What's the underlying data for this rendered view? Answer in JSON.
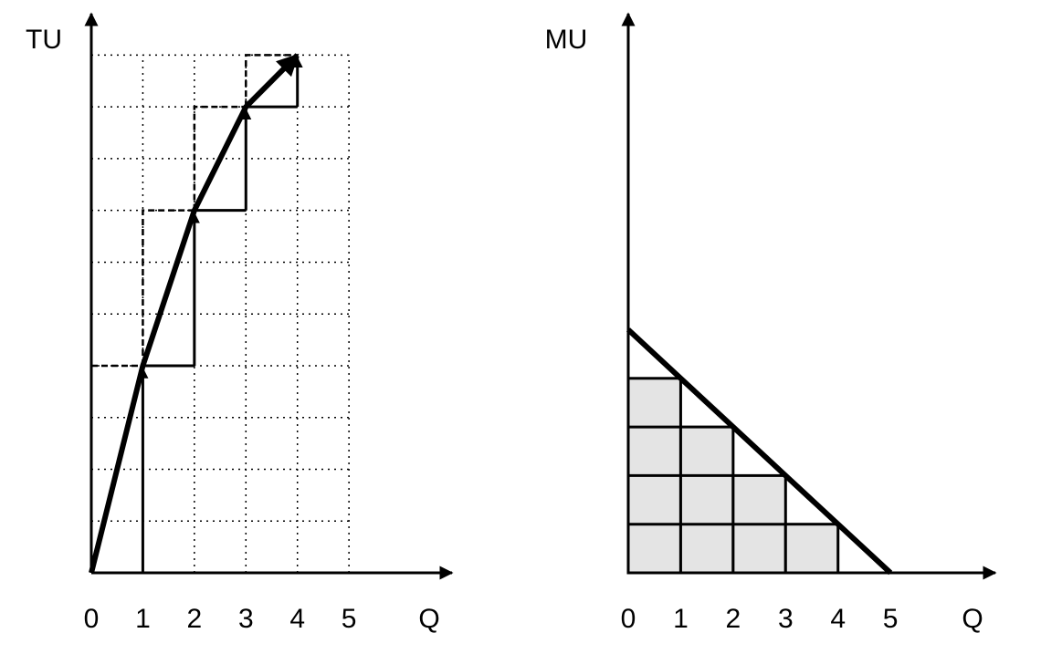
{
  "chart_data": [
    {
      "type": "line",
      "ylabel": "TU",
      "xlabel": "Q",
      "x": [
        0,
        1,
        2,
        3,
        4
      ],
      "values": [
        0,
        4,
        7,
        9,
        10
      ],
      "xlim": [
        0,
        7
      ],
      "ylim": [
        0,
        10.8
      ],
      "xticks": [
        0,
        1,
        2,
        3,
        4,
        5
      ],
      "grid": true,
      "color": "#000000"
    },
    {
      "type": "line",
      "ylabel": "MU",
      "xlabel": "Q",
      "x": [
        0,
        1,
        2,
        3,
        4,
        5
      ],
      "values": [
        5,
        4,
        3,
        2,
        1,
        0
      ],
      "xlim": [
        0,
        7
      ],
      "ylim": [
        0,
        11.5
      ],
      "xticks": [
        0,
        1,
        2,
        3,
        4,
        5
      ],
      "grid": false,
      "color": "#000000"
    }
  ]
}
